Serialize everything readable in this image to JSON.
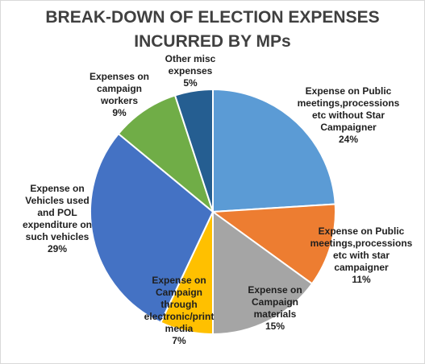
{
  "chart_data": {
    "type": "pie",
    "title_lines": [
      "BREAK-DOWN OF ELECTION EXPENSES",
      "INCURRED BY MPs"
    ],
    "start_angle_deg": 0,
    "direction": "clockwise",
    "slices": [
      {
        "label_lines": [
          "Expense on Public",
          "meetings,processions",
          "etc without Star",
          "Campaigner"
        ],
        "percent_label": "24%",
        "value": 24,
        "color": "#5B9BD5"
      },
      {
        "label_lines": [
          "Expense on Public",
          "meetings,processions",
          "etc with star",
          "campaigner"
        ],
        "percent_label": "11%",
        "value": 11,
        "color": "#ED7D31"
      },
      {
        "label_lines": [
          "Expense on",
          "Campaign",
          "materials"
        ],
        "percent_label": "15%",
        "value": 15,
        "color": "#A5A5A5"
      },
      {
        "label_lines": [
          "Expense on",
          "Campaign",
          "through",
          "electronic/print",
          "media"
        ],
        "percent_label": "7%",
        "value": 7,
        "color": "#FFC000"
      },
      {
        "label_lines": [
          "Expense on",
          "Vehicles used",
          "and POL",
          "expenditure on",
          "such vehicles"
        ],
        "percent_label": "29%",
        "value": 29,
        "color": "#4472C4"
      },
      {
        "label_lines": [
          "Expenses on",
          "campaign",
          "workers"
        ],
        "percent_label": "9%",
        "value": 9,
        "color": "#70AD47"
      },
      {
        "label_lines": [
          "Other misc",
          "expenses"
        ],
        "percent_label": "5%",
        "value": 5,
        "color": "#255E91"
      }
    ]
  }
}
